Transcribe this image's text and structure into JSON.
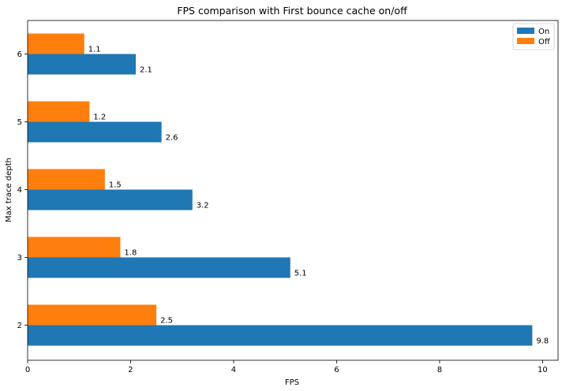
{
  "chart_data": {
    "type": "bar",
    "orientation": "horizontal",
    "title": "FPS comparison with First bounce cache on/off",
    "xlabel": "FPS",
    "ylabel": "Max trace depth",
    "categories": [
      "2",
      "3",
      "4",
      "5",
      "6"
    ],
    "series": [
      {
        "name": "On",
        "color": "#1f77b4",
        "values": [
          9.8,
          5.1,
          3.2,
          2.6,
          2.1
        ]
      },
      {
        "name": "Off",
        "color": "#ff7f0e",
        "values": [
          2.5,
          1.8,
          1.5,
          1.2,
          1.1
        ]
      }
    ],
    "xlim": [
      0,
      10.3
    ],
    "xticks": [
      0,
      2,
      4,
      6,
      8,
      10
    ],
    "grid": false,
    "legend_position": "top-right",
    "data_labels": true
  }
}
